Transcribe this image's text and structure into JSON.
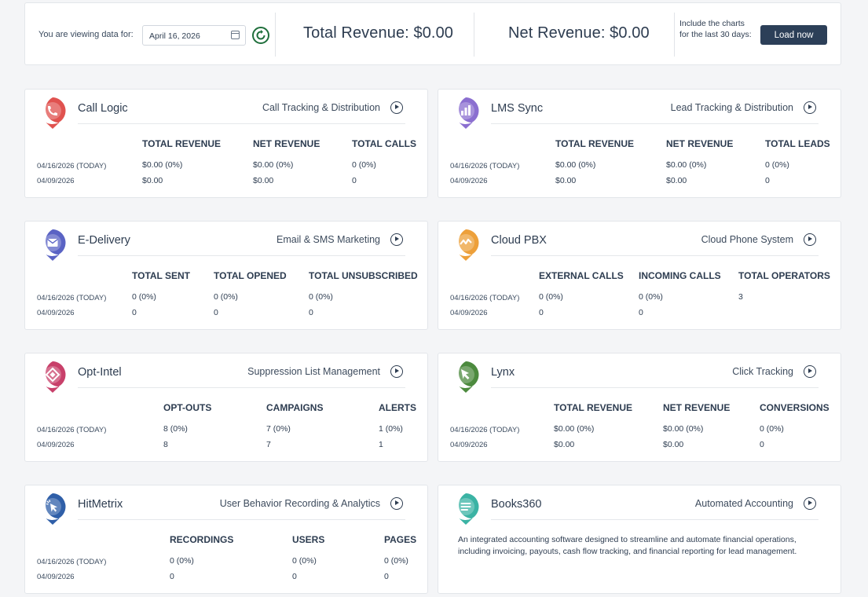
{
  "header": {
    "viewing_label": "You are viewing data for:",
    "date_value": "April 16, 2026",
    "total_revenue": "Total Revenue: $0.00",
    "net_revenue": "Net Revenue: $0.00",
    "include_text": "Include the charts for the last 30 days:",
    "load_button": "Load now"
  },
  "colors": {
    "call_logic": "#e0524f",
    "lms_sync": "#8b6fd0",
    "e_delivery": "#5a63c4",
    "cloud_pbx": "#eda03a",
    "opt_intel": "#c8406a",
    "lynx": "#4c8a3e",
    "hitmetrix": "#2f5fa8",
    "books360": "#3bb3a4",
    "button": "#2c3f58"
  },
  "row_labels": {
    "today": "04/16/2026 (TODAY)",
    "prev": "04/09/2026"
  },
  "cards": {
    "call_logic": {
      "icon": "phone-icon",
      "title": "Call Logic",
      "subtitle": "Call Tracking & Distribution",
      "columns": [
        "TOTAL REVENUE",
        "NET REVENUE",
        "TOTAL CALLS"
      ],
      "today": [
        "$0.00 (0%)",
        "$0.00 (0%)",
        "0 (0%)"
      ],
      "prev": [
        "$0.00",
        "$0.00",
        "0"
      ]
    },
    "lms_sync": {
      "icon": "bar-chart-icon",
      "title": "LMS Sync",
      "subtitle": "Lead Tracking & Distribution",
      "columns": [
        "TOTAL REVENUE",
        "NET REVENUE",
        "TOTAL LEADS"
      ],
      "today": [
        "$0.00 (0%)",
        "$0.00 (0%)",
        "0 (0%)"
      ],
      "prev": [
        "$0.00",
        "$0.00",
        "0"
      ]
    },
    "e_delivery": {
      "icon": "envelope-icon",
      "title": "E-Delivery",
      "subtitle": "Email & SMS Marketing",
      "columns": [
        "TOTAL SENT",
        "TOTAL OPENED",
        "TOTAL UNSUBSCRIBED"
      ],
      "today": [
        "0 (0%)",
        "0 (0%)",
        "0 (0%)"
      ],
      "prev": [
        "0",
        "0",
        "0"
      ]
    },
    "cloud_pbx": {
      "icon": "cloud-phone-icon",
      "title": "Cloud PBX",
      "subtitle": "Cloud Phone System",
      "columns": [
        "EXTERNAL CALLS",
        "INCOMING CALLS",
        "TOTAL OPERATORS"
      ],
      "today": [
        "0 (0%)",
        "0 (0%)",
        "3"
      ],
      "prev": [
        "0",
        "0",
        ""
      ]
    },
    "opt_intel": {
      "icon": "diamond-icon",
      "title": "Opt-Intel",
      "subtitle": "Suppression List Management",
      "columns": [
        "OPT-OUTS",
        "CAMPAIGNS",
        "ALERTS"
      ],
      "today": [
        "8 (0%)",
        "7 (0%)",
        "1 (0%)"
      ],
      "prev": [
        "8",
        "7",
        "1"
      ]
    },
    "lynx": {
      "icon": "cursor-arrow-icon",
      "title": "Lynx",
      "subtitle": "Click Tracking",
      "columns": [
        "TOTAL REVENUE",
        "NET REVENUE",
        "CONVERSIONS"
      ],
      "today": [
        "$0.00 (0%)",
        "$0.00 (0%)",
        "0 (0%)"
      ],
      "prev": [
        "$0.00",
        "$0.00",
        "0"
      ]
    },
    "hitmetrix": {
      "icon": "click-pointer-icon",
      "title": "HitMetrix",
      "subtitle": "User Behavior Recording & Analytics",
      "columns": [
        "RECORDINGS",
        "USERS",
        "PAGES"
      ],
      "today": [
        "0 (0%)",
        "0 (0%)",
        "0 (0%)"
      ],
      "prev": [
        "0",
        "0",
        "0"
      ]
    },
    "books360": {
      "icon": "document-lines-icon",
      "title": "Books360",
      "subtitle": "Automated Accounting",
      "description": "An integrated accounting software designed to streamline and automate financial operations, including invoicing, payouts, cash flow tracking, and financial reporting for lead management."
    }
  }
}
